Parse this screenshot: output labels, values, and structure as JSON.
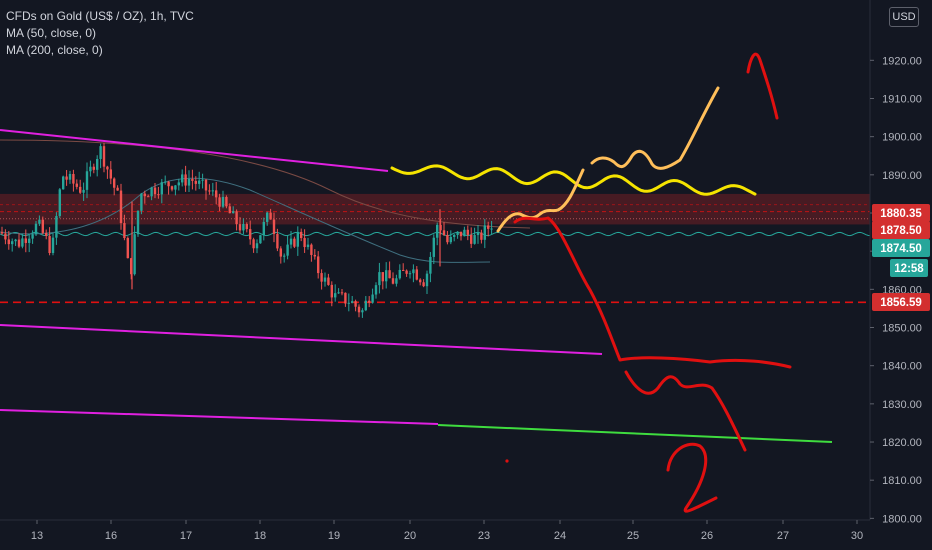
{
  "header": {
    "symbol_line": "CFDs on Gold (US$ / OZ), 1h, TVC",
    "ma50_label": "MA (50, close, 0)",
    "ma200_label": "MA (200, close, 0)",
    "currency_button": "USD"
  },
  "chart_data": {
    "type": "candlestick",
    "symbol": "CFDs on Gold (US$ / OZ)",
    "interval": "1h",
    "source": "TVC",
    "currency": "USD",
    "x_ticks": [
      "13",
      "16",
      "17",
      "18",
      "19",
      "20",
      "23",
      "24",
      "25",
      "26",
      "27",
      "30"
    ],
    "y_ticks": [
      1800,
      1810,
      1820,
      1830,
      1840,
      1850,
      1860,
      1870,
      1880,
      1890,
      1900,
      1910,
      1920
    ],
    "ylim": [
      1800,
      1930
    ],
    "price_labels": [
      {
        "value": "1880.35",
        "kind": "resistance-dashed",
        "color": "#d32f2f"
      },
      {
        "value": "1878.50",
        "kind": "dotted-level",
        "color": "#d32f2f"
      },
      {
        "value": "1874.50",
        "kind": "last-price",
        "color": "#26a69a"
      },
      {
        "value": "12:58",
        "kind": "countdown",
        "color": "#26a69a"
      },
      {
        "value": "1856.59",
        "kind": "support-dashed",
        "color": "#d32f2f"
      }
    ],
    "zone": {
      "from": 1877,
      "to": 1885,
      "color": "#5a1e24"
    },
    "colors": {
      "up": "#26a69a",
      "down": "#ef5350",
      "ma50": "#3f6f7f",
      "ma200": "#7a4a44",
      "trendline": "#e020e0",
      "green_line": "#3fdc3f",
      "yellow_wave": "#f5e400",
      "orange_path": "#ffbf5a",
      "red_path": "#e01010",
      "axis_text": "#b2b5be"
    },
    "grid": false,
    "legend": "top-left"
  }
}
